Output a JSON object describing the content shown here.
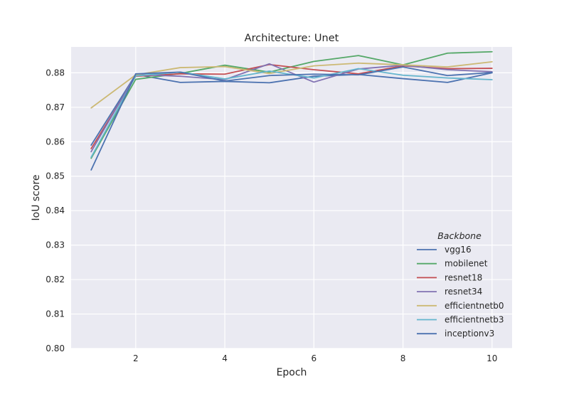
{
  "chart_data": {
    "type": "line",
    "title": "Architecture: Unet",
    "xlabel": "Epoch",
    "ylabel": "IoU score",
    "xlim": [
      0.55,
      10.45
    ],
    "ylim": [
      0.8,
      0.8875
    ],
    "xticks": [
      2,
      4,
      6,
      8,
      10
    ],
    "yticks": [
      0.8,
      0.81,
      0.82,
      0.83,
      0.84,
      0.85,
      0.86,
      0.87,
      0.88
    ],
    "ytick_labels": [
      "0.80",
      "0.81",
      "0.82",
      "0.83",
      "0.84",
      "0.85",
      "0.86",
      "0.87",
      "0.88"
    ],
    "grid": true,
    "legend": {
      "title": "Backbone",
      "placement": "lower-right"
    },
    "x": [
      1,
      2,
      3,
      4,
      5,
      6,
      7,
      8,
      9,
      10
    ],
    "series": [
      {
        "name": "vgg16",
        "color": "#4C72B0",
        "values": [
          0.859,
          0.8795,
          0.8772,
          0.8775,
          0.8771,
          0.879,
          0.8795,
          0.8783,
          0.8772,
          0.88
        ]
      },
      {
        "name": "mobilenet",
        "color": "#55A868",
        "values": [
          0.8552,
          0.8781,
          0.8798,
          0.8822,
          0.8802,
          0.8833,
          0.885,
          0.8823,
          0.8857,
          0.8861
        ]
      },
      {
        "name": "resnet18",
        "color": "#C44E52",
        "values": [
          0.858,
          0.879,
          0.8797,
          0.8796,
          0.8824,
          0.8809,
          0.8797,
          0.882,
          0.8812,
          0.8813
        ]
      },
      {
        "name": "resnet34",
        "color": "#8172B2",
        "values": [
          0.8571,
          0.8795,
          0.879,
          0.878,
          0.8826,
          0.8773,
          0.8811,
          0.8822,
          0.8809,
          0.8803
        ]
      },
      {
        "name": "efficientnetb0",
        "color": "#CCB974",
        "values": [
          0.8698,
          0.8794,
          0.8815,
          0.8818,
          0.8798,
          0.882,
          0.8828,
          0.8823,
          0.8817,
          0.8832
        ]
      },
      {
        "name": "efficientnetb3",
        "color": "#64B5CD",
        "values": [
          0.8555,
          0.8791,
          0.8802,
          0.8782,
          0.8805,
          0.8785,
          0.8812,
          0.8793,
          0.8785,
          0.878
        ]
      },
      {
        "name": "inceptionv3",
        "color": "#4C72B0",
        "values": [
          0.8518,
          0.8797,
          0.8802,
          0.8776,
          0.8792,
          0.8796,
          0.8794,
          0.8817,
          0.8792,
          0.8801
        ]
      }
    ]
  }
}
